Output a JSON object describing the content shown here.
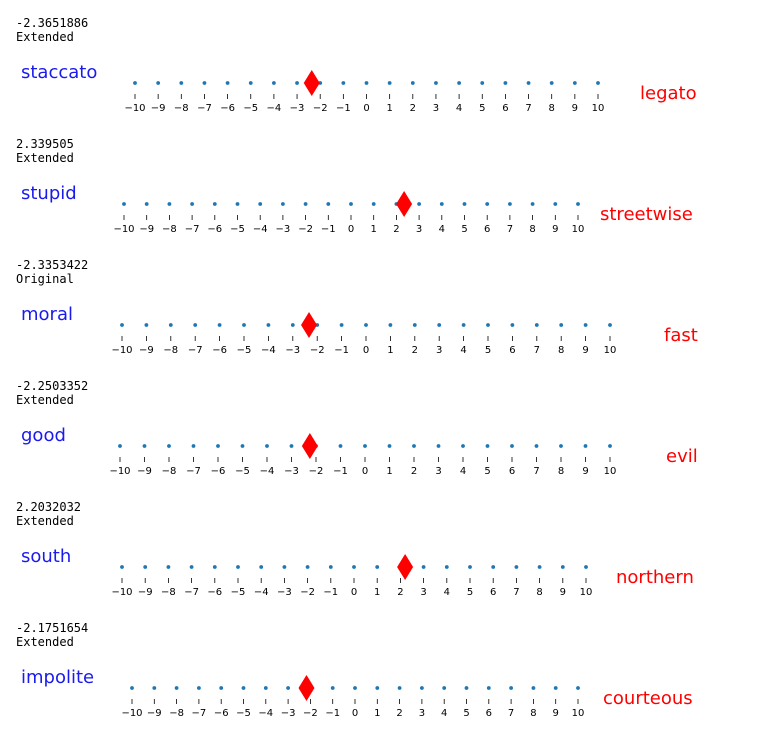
{
  "style": {
    "left_word_color": "#1a1aee",
    "right_word_color": "#ff0000",
    "dot_color": "#1f77b4",
    "marker_color": "#ff0000"
  },
  "chart_data": [
    {
      "type": "scatter",
      "score": "-2.3651886",
      "label": "Extended",
      "left_word": "staccato",
      "right_word": "legato",
      "value": -2.3651886,
      "xlim": [
        -10,
        10
      ],
      "ticks": [
        -10,
        -9,
        -8,
        -7,
        -6,
        -5,
        -4,
        -3,
        -2,
        -1,
        0,
        1,
        2,
        3,
        4,
        5,
        6,
        7,
        8,
        9,
        10
      ]
    },
    {
      "type": "scatter",
      "score": "2.339505",
      "label": "Extended",
      "left_word": "stupid",
      "right_word": "streetwise",
      "value": 2.339505,
      "xlim": [
        -10,
        10
      ],
      "ticks": [
        -10,
        -9,
        -8,
        -7,
        -6,
        -5,
        -4,
        -3,
        -2,
        -1,
        0,
        1,
        2,
        3,
        4,
        5,
        6,
        7,
        8,
        9,
        10
      ]
    },
    {
      "type": "scatter",
      "score": "-2.3353422",
      "label": "Original",
      "left_word": "moral",
      "right_word": "fast",
      "value": -2.3353422,
      "xlim": [
        -10,
        10
      ],
      "ticks": [
        -10,
        -9,
        -8,
        -7,
        -6,
        -5,
        -4,
        -3,
        -2,
        -1,
        0,
        1,
        2,
        3,
        4,
        5,
        6,
        7,
        8,
        9,
        10
      ]
    },
    {
      "type": "scatter",
      "score": "-2.2503352",
      "label": "Extended",
      "left_word": "good",
      "right_word": "evil",
      "value": -2.2503352,
      "xlim": [
        -10,
        10
      ],
      "ticks": [
        -10,
        -9,
        -8,
        -7,
        -6,
        -5,
        -4,
        -3,
        -2,
        -1,
        0,
        1,
        2,
        3,
        4,
        5,
        6,
        7,
        8,
        9,
        10
      ]
    },
    {
      "type": "scatter",
      "score": "2.2032032",
      "label": "Extended",
      "left_word": "south",
      "right_word": "northern",
      "value": 2.2032032,
      "xlim": [
        -10,
        10
      ],
      "ticks": [
        -10,
        -9,
        -8,
        -7,
        -6,
        -5,
        -4,
        -3,
        -2,
        -1,
        0,
        1,
        2,
        3,
        4,
        5,
        6,
        7,
        8,
        9,
        10
      ]
    },
    {
      "type": "scatter",
      "score": "-2.1751654",
      "label": "Extended",
      "left_word": "impolite",
      "right_word": "courteous",
      "value": -2.1751654,
      "xlim": [
        -10,
        10
      ],
      "ticks": [
        -10,
        -9,
        -8,
        -7,
        -6,
        -5,
        -4,
        -3,
        -2,
        -1,
        0,
        1,
        2,
        3,
        4,
        5,
        6,
        7,
        8,
        9,
        10
      ]
    }
  ]
}
